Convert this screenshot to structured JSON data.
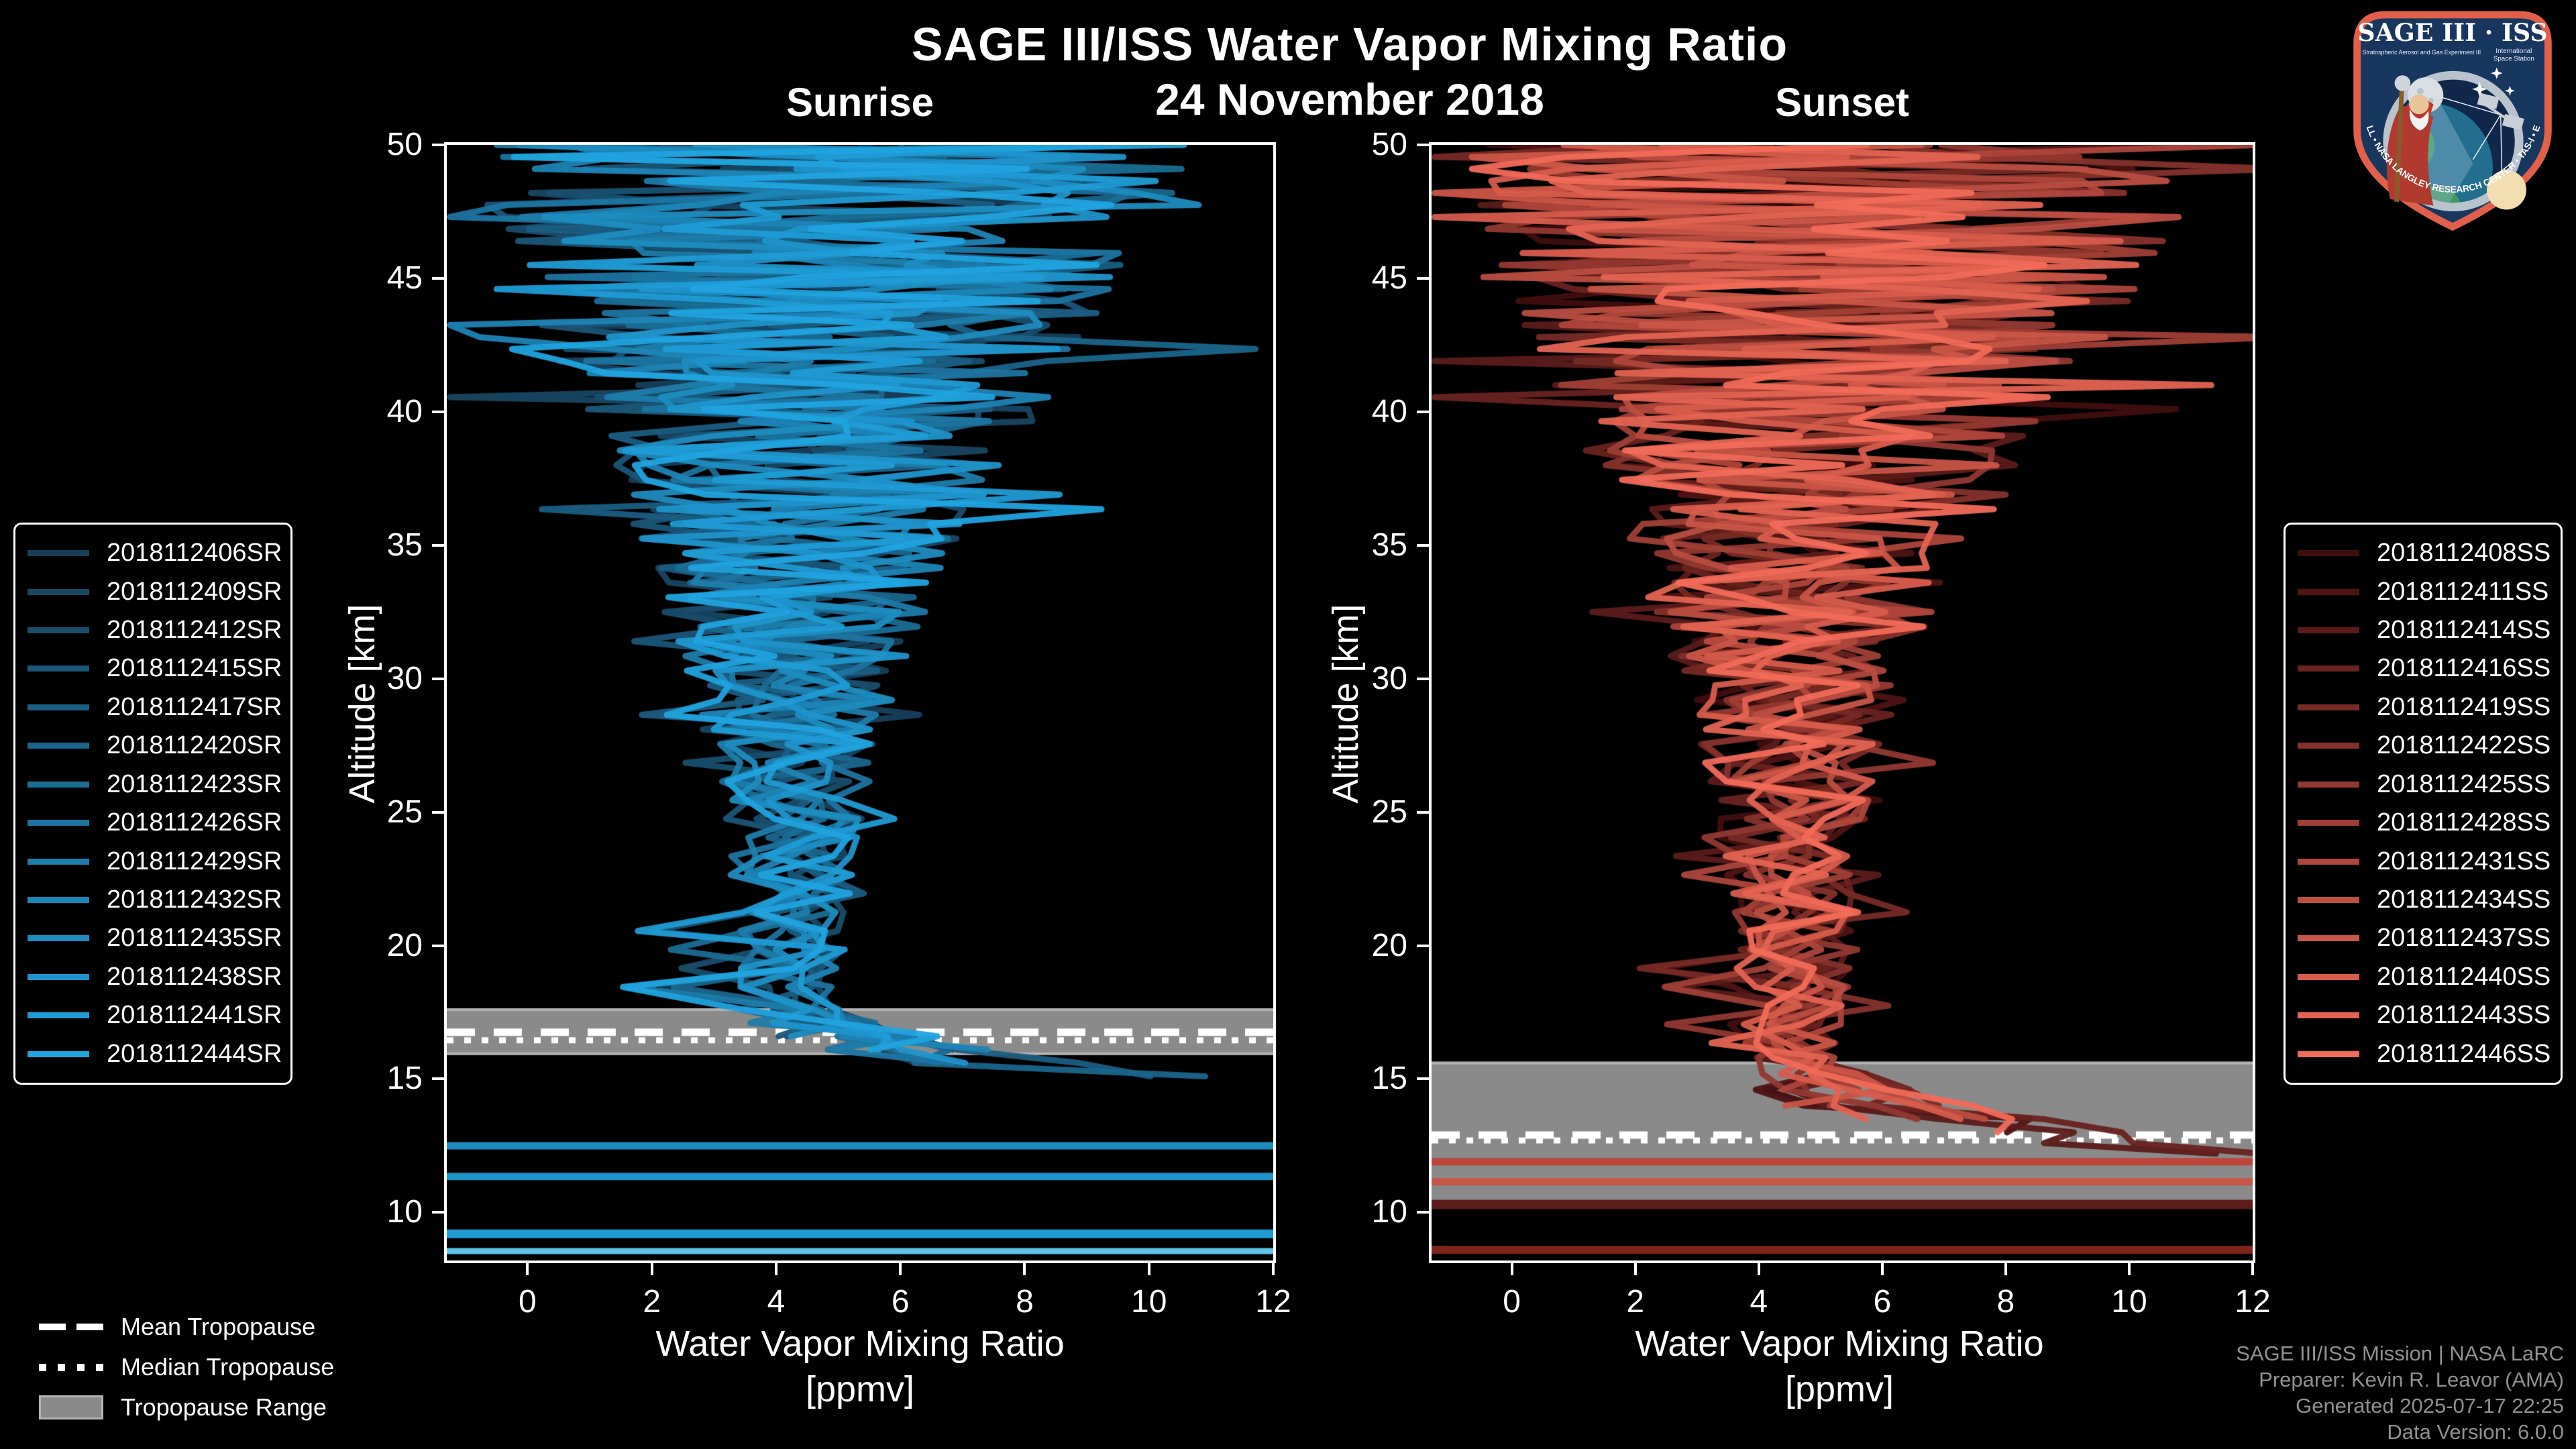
{
  "header": {
    "title": "SAGE III/ISS Water Vapor Mixing Ratio",
    "date": "24 November 2018"
  },
  "colors": {
    "background": "#000000",
    "text": "#ffffff",
    "muted_text": "#919191",
    "band": "#8a8a8a",
    "band_edge": "#b2b2b2",
    "frame": "#ffffff"
  },
  "tropopause_legend": {
    "mean": "Mean Tropopause",
    "median": "Median Tropopause",
    "range": "Tropopause Range"
  },
  "footer": {
    "lines": [
      "SAGE III/ISS Mission | NASA LaRC",
      "Preparer: Kevin R. Leavor (AMA)",
      "Generated 2025-07-17 22:25",
      "Data Version: 6.0.0"
    ]
  },
  "logo": {
    "title": "SAGE III · ISS",
    "subtitle_left": "Stratospheric Aerosol and Gas Experiment III",
    "subtitle_right_1": "International",
    "subtitle_right_2": "Space Station",
    "arc_text": "BALL • NASA LANGLEY RESEARCH CENTER • TAS-I • ESA"
  },
  "chart_data": [
    {
      "type": "line",
      "panel_title": "Sunrise",
      "xlabel_line1": "Water Vapor Mixing Ratio",
      "xlabel_line2": "[ppmv]",
      "ylabel": "Altitude [km]",
      "xlim": [
        -1.3,
        12
      ],
      "ylim": [
        8.2,
        50
      ],
      "xticks": [
        0,
        2,
        4,
        6,
        8,
        10,
        12
      ],
      "yticks": [
        10,
        15,
        20,
        25,
        30,
        35,
        40,
        45,
        50
      ],
      "series": [
        {
          "name": "2018112406SR",
          "color": "#173E58"
        },
        {
          "name": "2018112409SR",
          "color": "#184662"
        },
        {
          "name": "2018112412SR",
          "color": "#184E6D"
        },
        {
          "name": "2018112415SR",
          "color": "#195577"
        },
        {
          "name": "2018112417SR",
          "color": "#1A5D82"
        },
        {
          "name": "2018112420SR",
          "color": "#1A658C"
        },
        {
          "name": "2018112423SR",
          "color": "#1B6D96"
        },
        {
          "name": "2018112426SR",
          "color": "#1C74A1"
        },
        {
          "name": "2018112429SR",
          "color": "#1D7CAB"
        },
        {
          "name": "2018112432SR",
          "color": "#1D84B6"
        },
        {
          "name": "2018112435SR",
          "color": "#1E8CC0"
        },
        {
          "name": "2018112438SR",
          "color": "#1F93CB"
        },
        {
          "name": "2018112441SR",
          "color": "#1F9BD5"
        },
        {
          "name": "2018112444SR",
          "color": "#20A3DF"
        }
      ],
      "tropopause": {
        "mean_km": 16.75,
        "median_km": 16.45,
        "range_km": [
          15.9,
          17.65
        ]
      },
      "flat_lines": [
        {
          "alt_km": 12.5,
          "color": "#1E8CC0",
          "width": 11
        },
        {
          "alt_km": 11.35,
          "color": "#1F93CB",
          "width": 11
        },
        {
          "alt_km": 9.2,
          "color": "#1F9BD5",
          "width": 13
        },
        {
          "alt_km": 8.55,
          "color": "#5FC4EA",
          "width": 9
        }
      ],
      "profile_model": {
        "seed": 11,
        "main_end_alt": 17.8,
        "center_by_alt": [
          [
            50,
            5.0
          ],
          [
            44,
            4.7
          ],
          [
            38,
            4.5
          ],
          [
            32,
            4.3
          ],
          [
            26,
            4.3
          ],
          [
            21,
            4.35
          ],
          [
            18,
            4.1
          ]
        ],
        "spread_by_alt": [
          [
            50,
            6.0
          ],
          [
            46,
            5.2
          ],
          [
            42,
            4.2
          ],
          [
            38,
            3.2
          ],
          [
            34,
            2.4
          ],
          [
            30,
            1.7
          ],
          [
            26,
            1.25
          ],
          [
            22,
            0.95
          ],
          [
            18,
            0.8
          ]
        ],
        "hook": [
          [
            17.6,
            4.3,
            0.9
          ],
          [
            17.1,
            4.7,
            1.2
          ],
          [
            16.6,
            5.3,
            1.5
          ],
          [
            16.1,
            6.3,
            1.7
          ],
          [
            15.6,
            7.8,
            1.9
          ],
          [
            15.1,
            9.6,
            1.8
          ],
          [
            14.7,
            11.3,
            1.3
          ],
          [
            14.4,
            12.3,
            0.6
          ]
        ],
        "end_alt_range": [
          14.4,
          16.6
        ],
        "left_spike": {
          "probability": 0.45,
          "alt_range": [
            17.2,
            20.5
          ],
          "value_range": [
            1.5,
            2.5
          ]
        }
      }
    },
    {
      "type": "line",
      "panel_title": "Sunset",
      "xlabel_line1": "Water Vapor Mixing Ratio",
      "xlabel_line2": "[ppmv]",
      "ylabel": "Altitude [km]",
      "xlim": [
        -1.3,
        12
      ],
      "ylim": [
        8.2,
        50
      ],
      "xticks": [
        0,
        2,
        4,
        6,
        8,
        10,
        12
      ],
      "yticks": [
        10,
        15,
        20,
        25,
        30,
        35,
        40,
        45,
        50
      ],
      "series": [
        {
          "name": "2018112408SS",
          "color": "#400D0D"
        },
        {
          "name": "2018112411SS",
          "color": "#4E1413"
        },
        {
          "name": "2018112414SS",
          "color": "#5B1B19"
        },
        {
          "name": "2018112416SS",
          "color": "#69221E"
        },
        {
          "name": "2018112419SS",
          "color": "#772A24"
        },
        {
          "name": "2018112422SS",
          "color": "#84312A"
        },
        {
          "name": "2018112425SS",
          "color": "#923830"
        },
        {
          "name": "2018112428SS",
          "color": "#A03F35"
        },
        {
          "name": "2018112431SS",
          "color": "#AE463B"
        },
        {
          "name": "2018112434SS",
          "color": "#BB4D41"
        },
        {
          "name": "2018112437SS",
          "color": "#C95547"
        },
        {
          "name": "2018112440SS",
          "color": "#D75C4C"
        },
        {
          "name": "2018112443SS",
          "color": "#E46352"
        },
        {
          "name": "2018112446SS",
          "color": "#F26A58"
        }
      ],
      "tropopause": {
        "mean_km": 12.9,
        "median_km": 12.7,
        "range_km": [
          10.35,
          15.65
        ]
      },
      "flat_lines": [
        {
          "alt_km": 11.9,
          "color": "#C0453A",
          "width": 11
        },
        {
          "alt_km": 11.15,
          "color": "#C95547",
          "width": 11
        },
        {
          "alt_km": 10.3,
          "color": "#5B1B19",
          "width": 14
        },
        {
          "alt_km": 8.6,
          "color": "#7E2418",
          "width": 12
        }
      ],
      "profile_model": {
        "seed": 77,
        "main_end_alt": 16.0,
        "center_by_alt": [
          [
            50,
            5.3
          ],
          [
            44,
            5.0
          ],
          [
            38,
            4.8
          ],
          [
            32,
            4.6
          ],
          [
            26,
            4.6
          ],
          [
            20,
            4.6
          ],
          [
            16,
            4.4
          ]
        ],
        "spread_by_alt": [
          [
            50,
            6.2
          ],
          [
            46,
            5.4
          ],
          [
            42,
            4.5
          ],
          [
            38,
            3.5
          ],
          [
            34,
            2.6
          ],
          [
            30,
            1.9
          ],
          [
            26,
            1.4
          ],
          [
            22,
            1.1
          ],
          [
            16,
            0.9
          ]
        ],
        "hook": [
          [
            15.8,
            4.5,
            0.8
          ],
          [
            15.2,
            4.8,
            1.0
          ],
          [
            14.6,
            5.2,
            1.3
          ],
          [
            14.0,
            5.9,
            1.6
          ],
          [
            13.5,
            6.9,
            1.8
          ],
          [
            13.0,
            8.3,
            1.9
          ],
          [
            12.6,
            10.2,
            1.6
          ],
          [
            12.2,
            12.0,
            0.8
          ]
        ],
        "end_alt_range": [
          12.1,
          14.3
        ],
        "left_spike": {
          "probability": 0.3,
          "alt_range": [
            16.5,
            20.0
          ],
          "value_range": [
            1.8,
            2.6
          ]
        }
      }
    }
  ]
}
